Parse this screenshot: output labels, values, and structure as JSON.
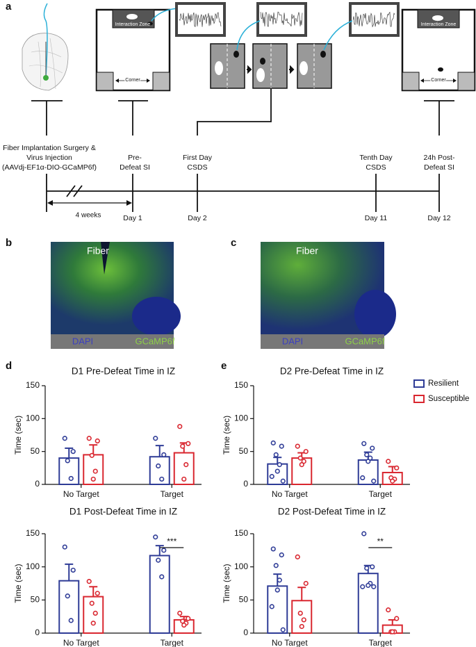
{
  "panel_labels": [
    "a",
    "b",
    "c",
    "d",
    "e"
  ],
  "diagram": {
    "interaction_zone": [
      "Interaction Zone",
      "Interaction Zone"
    ],
    "corner": [
      "Corner",
      "Corner"
    ],
    "stages": [
      {
        "label": [
          "Fiber Implantation Surgery &",
          "Virus Injection",
          "(AAVdj-EF1α-DIO-GCaMP6f)"
        ]
      },
      {
        "label": [
          "Pre-",
          "Defeat SI"
        ]
      },
      {
        "label": [
          "First Day",
          "CSDS"
        ]
      },
      {
        "label": [
          "Tenth Day",
          "CSDS"
        ]
      },
      {
        "label": [
          "24h Post-",
          "Defeat SI"
        ]
      }
    ],
    "interval": "4 weeks",
    "days": [
      "Day 1",
      "Day 2",
      "Day 11",
      "Day 12"
    ]
  },
  "images": [
    {
      "label": "Fiber",
      "channels": [
        "DAPI",
        "GCaMP6f"
      ]
    },
    {
      "label": "Fiber",
      "channels": [
        "DAPI",
        "GCaMP6f"
      ]
    }
  ],
  "chart_data": [
    {
      "type": "bar",
      "title": "D1 Pre-Defeat Time in IZ",
      "ylabel": "Time (sec)",
      "categories": [
        "No Target",
        "Target"
      ],
      "ylim": [
        0,
        150
      ],
      "yticks": [
        0,
        50,
        100,
        150
      ],
      "series": [
        {
          "color": "#2e3b96",
          "values": [
            40,
            42
          ],
          "errors": [
            15,
            17
          ],
          "points": [
            [
              70,
              50,
              36,
              9
            ],
            [
              70,
              45,
              28,
              8
            ]
          ]
        },
        {
          "color": "#d9262f",
          "values": [
            45,
            48
          ],
          "errors": [
            15,
            15
          ],
          "points": [
            [
              70,
              66,
              44,
              20,
              8
            ],
            [
              88,
              62,
              58,
              30,
              8
            ]
          ]
        }
      ]
    },
    {
      "type": "bar",
      "title": "D1 Post-Defeat Time in IZ",
      "ylabel": "Time (sec)",
      "categories": [
        "No Target",
        "Target"
      ],
      "ylim": [
        0,
        150
      ],
      "yticks": [
        0,
        50,
        100,
        150
      ],
      "significance": "***",
      "series": [
        {
          "color": "#2e3b96",
          "values": [
            79,
            117
          ],
          "errors": [
            25,
            15
          ],
          "points": [
            [
              130,
              95,
              56,
              19
            ],
            [
              145,
              125,
              110,
              85
            ]
          ]
        },
        {
          "color": "#d9262f",
          "values": [
            55,
            20
          ],
          "errors": [
            15,
            5
          ],
          "points": [
            [
              78,
              60,
              45,
              30,
              15
            ],
            [
              30,
              22,
              18,
              15,
              12
            ]
          ]
        }
      ]
    },
    {
      "type": "bar",
      "title": "D2 Pre-Defeat Time in IZ",
      "ylabel": "Time (sec)",
      "categories": [
        "No Target",
        "Target"
      ],
      "ylim": [
        0,
        150
      ],
      "yticks": [
        0,
        50,
        100,
        150
      ],
      "series": [
        {
          "name": "Resilient",
          "color": "#2e3b96",
          "values": [
            31,
            37
          ],
          "errors": [
            10,
            12
          ],
          "points": [
            [
              63,
              58,
              45,
              30,
              20,
              12,
              5
            ],
            [
              62,
              55,
              45,
              40,
              35,
              10,
              5
            ]
          ]
        },
        {
          "name": "Susceptible",
          "color": "#d9262f",
          "values": [
            40,
            18
          ],
          "errors": [
            8,
            9
          ],
          "points": [
            [
              58,
              50,
              40,
              35,
              30
            ],
            [
              35,
              25,
              10,
              8,
              5
            ]
          ]
        }
      ]
    },
    {
      "type": "bar",
      "title": "D2 Post-Defeat Time in IZ",
      "ylabel": "Time (sec)",
      "categories": [
        "No Target",
        "Target"
      ],
      "ylim": [
        0,
        150
      ],
      "yticks": [
        0,
        50,
        100,
        150
      ],
      "significance": "**",
      "series": [
        {
          "color": "#2e3b96",
          "values": [
            71,
            90
          ],
          "errors": [
            18,
            12
          ],
          "points": [
            [
              127,
              118,
              102,
              80,
              65,
              40,
              5
            ],
            [
              150,
              100,
              98,
              75,
              72,
              70,
              70
            ]
          ]
        },
        {
          "color": "#d9262f",
          "values": [
            49,
            12
          ],
          "errors": [
            20,
            8
          ],
          "points": [
            [
              115,
              75,
              30,
              20,
              10
            ],
            [
              35,
              22,
              2,
              2,
              2
            ]
          ]
        }
      ]
    }
  ]
}
